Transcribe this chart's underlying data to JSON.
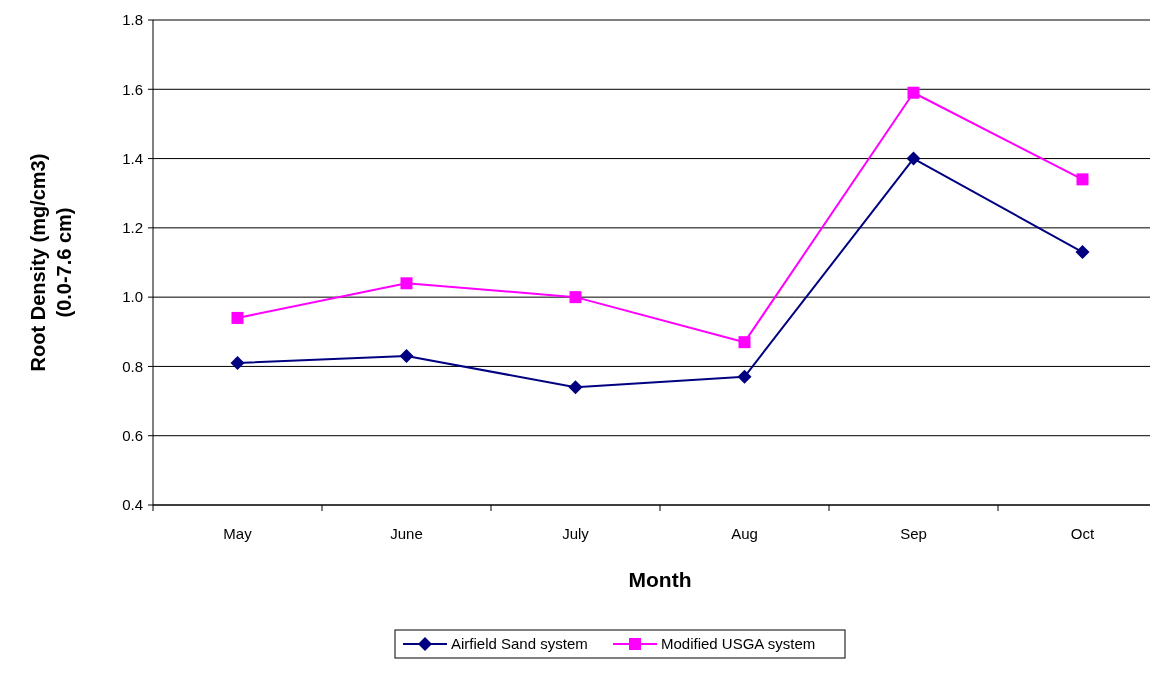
{
  "chart_data": {
    "type": "line",
    "xlabel": "Month",
    "ylabel": "Root Density (mg/cm3)\n(0.0-7.6 cm)",
    "categories": [
      "May",
      "June",
      "July",
      "Aug",
      "Sep",
      "Oct"
    ],
    "series": [
      {
        "name": "Airfield Sand system",
        "color": "#000080",
        "marker": "diamond",
        "values": [
          0.81,
          0.83,
          0.74,
          0.77,
          1.4,
          1.13
        ]
      },
      {
        "name": "Modified USGA system",
        "color": "#ff00ff",
        "marker": "square",
        "values": [
          0.94,
          1.04,
          1.0,
          0.87,
          1.59,
          1.34
        ]
      }
    ],
    "ylim": [
      0.4,
      1.8
    ],
    "yticks": [
      {
        "value": 0.4,
        "label": "0.4"
      },
      {
        "value": 0.6,
        "label": "0.6"
      },
      {
        "value": 0.8,
        "label": "0.8"
      },
      {
        "value": 1.0,
        "label": "1.0"
      },
      {
        "value": 1.2,
        "label": "1.2"
      },
      {
        "value": 1.4,
        "label": "1.4"
      },
      {
        "value": 1.6,
        "label": "1.6"
      },
      {
        "value": 1.8,
        "label": "1.8"
      }
    ],
    "grid": "y",
    "legend": "bottom",
    "line_style": "solid"
  }
}
